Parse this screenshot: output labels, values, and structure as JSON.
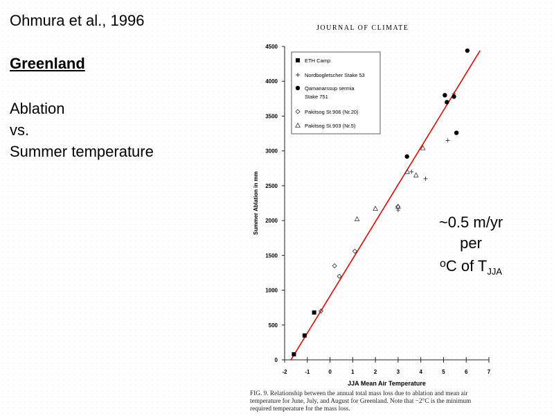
{
  "slide": {
    "title": "Ohmura et al., 1996",
    "region": "Greenland",
    "topic_lines": [
      "Ablation",
      "vs.",
      "Summer temperature"
    ],
    "annotation": {
      "line1": "~0.5 m/yr",
      "line2": "per",
      "degree": "o",
      "unit": "C of T",
      "subscript": "JJA"
    }
  },
  "figure": {
    "journal_header": "JOURNAL OF CLIMATE",
    "caption": "FIG. 9. Relationship between the annual total mass loss due to ablation and mean air temperature for June, July, and August for Greenland. Note that −2°C is the minimum required temperature for the mass loss."
  },
  "chart_data": {
    "type": "scatter",
    "title": "",
    "xlabel": "JJA Mean Air Temperature",
    "ylabel": "Summer Ablation in mm",
    "xlim": [
      -2,
      7
    ],
    "ylim": [
      0,
      4500
    ],
    "xticks": [
      -2,
      -1,
      0,
      1,
      2,
      3,
      4,
      5,
      6,
      7
    ],
    "yticks": [
      0,
      500,
      1000,
      1500,
      2000,
      2500,
      3000,
      3500,
      4000,
      4500
    ],
    "grid": false,
    "legend_placement": "top-left",
    "series": [
      {
        "name": "ETH Camp",
        "marker": "filled-square",
        "points": [
          [
            -1.59,
            80
          ],
          [
            -1.12,
            350
          ],
          [
            -0.7,
            680
          ]
        ]
      },
      {
        "name": "Nordbogletscher Stake 53",
        "marker": "plus",
        "points": [
          [
            3.0,
            2150
          ],
          [
            3.59,
            2700
          ],
          [
            4.21,
            2600
          ],
          [
            5.19,
            3150
          ],
          [
            5.46,
            3820
          ]
        ]
      },
      {
        "name": "Qamanarssup sermia Stake 751",
        "marker": "filled-circle",
        "points": [
          [
            3.39,
            2920
          ],
          [
            5.06,
            3800
          ],
          [
            5.15,
            3700
          ],
          [
            5.46,
            3780
          ],
          [
            5.57,
            3260
          ],
          [
            6.05,
            4440
          ]
        ]
      },
      {
        "name": "Pakitsog St.906 (Nr.20)",
        "marker": "open-diamond",
        "points": [
          [
            -0.4,
            700
          ],
          [
            0.2,
            1350
          ],
          [
            0.41,
            1200
          ],
          [
            1.09,
            1560
          ],
          [
            2.99,
            2200
          ]
        ]
      },
      {
        "name": "Pakitsog St.903 (Nr.5)",
        "marker": "open-triangle",
        "points": [
          [
            1.19,
            2020
          ],
          [
            2.0,
            2170
          ],
          [
            3.0,
            2200
          ],
          [
            3.4,
            2700
          ],
          [
            3.79,
            2650
          ],
          [
            4.09,
            3040
          ]
        ]
      }
    ],
    "fit_line": {
      "color": "#e00000",
      "from": [
        -1.72,
        0
      ],
      "to": [
        6.61,
        4440
      ]
    }
  }
}
